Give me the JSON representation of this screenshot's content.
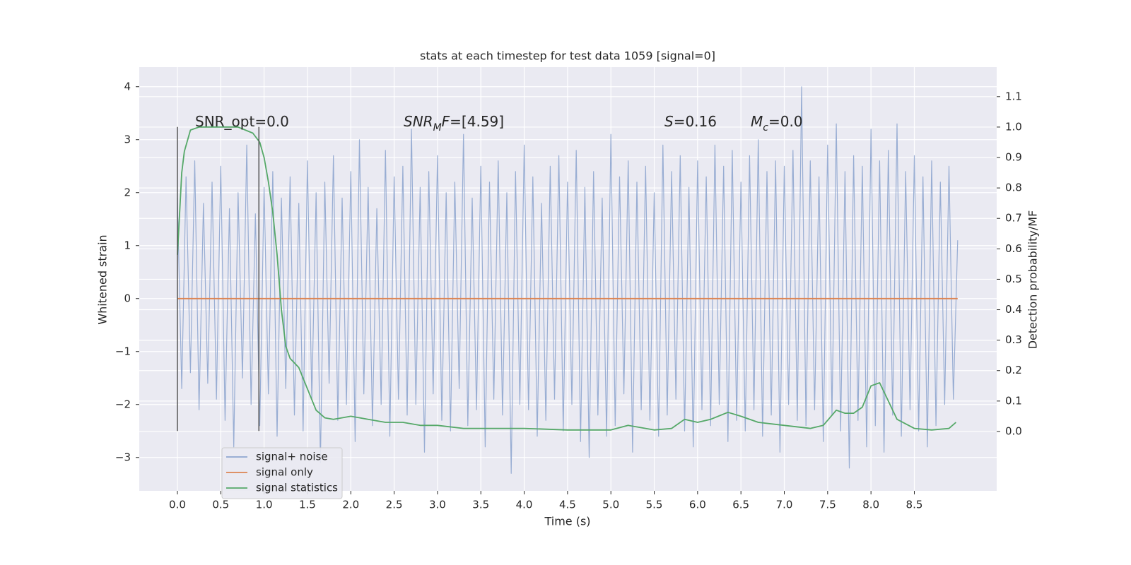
{
  "chart_data": {
    "type": "line",
    "title": "stats at each timestep for test data 1059 [signal=0]",
    "x_label": "Time (s)",
    "y_label": "Whitened strain",
    "y2_label": "Detection probability/MF",
    "xlim": [
      -0.44,
      9.45
    ],
    "ylim": [
      -3.63,
      4.37
    ],
    "y2lim": [
      -0.195,
      1.197
    ],
    "grid": true,
    "legend": "lower left",
    "xticks": [
      {
        "value": 0,
        "label": "0.0"
      },
      {
        "value": 0.5,
        "label": "0.5"
      },
      {
        "value": 1,
        "label": "1.0"
      },
      {
        "value": 1.5,
        "label": "1.5"
      },
      {
        "value": 2,
        "label": "2.0"
      },
      {
        "value": 2.5,
        "label": "2.5"
      },
      {
        "value": 3,
        "label": "3.0"
      },
      {
        "value": 3.5,
        "label": "3.5"
      },
      {
        "value": 4,
        "label": "4.0"
      },
      {
        "value": 4.5,
        "label": "4.5"
      },
      {
        "value": 5,
        "label": "5.0"
      },
      {
        "value": 5.5,
        "label": "5.5"
      },
      {
        "value": 6,
        "label": "6.0"
      },
      {
        "value": 6.5,
        "label": "6.5"
      },
      {
        "value": 7,
        "label": "7.0"
      },
      {
        "value": 7.5,
        "label": "7.5"
      },
      {
        "value": 8,
        "label": "8.0"
      },
      {
        "value": 8.5,
        "label": "8.5"
      }
    ],
    "yticks": [
      {
        "value": -3,
        "label": "−3"
      },
      {
        "value": -2,
        "label": "−2"
      },
      {
        "value": -1,
        "label": "−1"
      },
      0,
      1,
      2,
      3,
      4
    ],
    "y2ticks": [
      {
        "value": 0,
        "label": "0.0"
      },
      {
        "value": 0.1,
        "label": "0.1"
      },
      {
        "value": 0.2,
        "label": "0.2"
      },
      {
        "value": 0.3,
        "label": "0.3"
      },
      {
        "value": 0.4,
        "label": "0.4"
      },
      {
        "value": 0.5,
        "label": "0.5"
      },
      {
        "value": 0.6,
        "label": "0.6"
      },
      {
        "value": 0.7,
        "label": "0.7"
      },
      {
        "value": 0.8,
        "label": "0.8"
      },
      {
        "value": 0.9,
        "label": "0.9"
      },
      {
        "value": 1,
        "label": "1.0"
      },
      {
        "value": 1.1,
        "label": "1.1"
      }
    ],
    "series": [
      {
        "name": "signal+ noise",
        "color": "#8fa6cf",
        "x": [
          0,
          0.05,
          0.1,
          0.15,
          0.2,
          0.25,
          0.3,
          0.35,
          0.4,
          0.45,
          0.5,
          0.55,
          0.6,
          0.65,
          0.7,
          0.75,
          0.8,
          0.85,
          0.9,
          0.95,
          1,
          1.05,
          1.1,
          1.15,
          1.2,
          1.25,
          1.3,
          1.35,
          1.4,
          1.45,
          1.5,
          1.55,
          1.6,
          1.65,
          1.7,
          1.75,
          1.8,
          1.85,
          1.9,
          1.95,
          2,
          2.05,
          2.1,
          2.15,
          2.2,
          2.25,
          2.3,
          2.35,
          2.4,
          2.45,
          2.5,
          2.55,
          2.6,
          2.65,
          2.7,
          2.75,
          2.8,
          2.85,
          2.9,
          2.95,
          3,
          3.05,
          3.1,
          3.15,
          3.2,
          3.25,
          3.3,
          3.35,
          3.4,
          3.45,
          3.5,
          3.55,
          3.6,
          3.65,
          3.7,
          3.75,
          3.8,
          3.85,
          3.9,
          3.95,
          4,
          4.05,
          4.1,
          4.15,
          4.2,
          4.25,
          4.3,
          4.35,
          4.4,
          4.45,
          4.5,
          4.55,
          4.6,
          4.65,
          4.7,
          4.75,
          4.8,
          4.85,
          4.9,
          4.95,
          5,
          5.05,
          5.1,
          5.15,
          5.2,
          5.25,
          5.3,
          5.35,
          5.4,
          5.45,
          5.5,
          5.55,
          5.6,
          5.65,
          5.7,
          5.75,
          5.8,
          5.85,
          5.9,
          5.95,
          6,
          6.05,
          6.1,
          6.15,
          6.2,
          6.25,
          6.3,
          6.35,
          6.4,
          6.45,
          6.5,
          6.55,
          6.6,
          6.65,
          6.7,
          6.75,
          6.8,
          6.85,
          6.9,
          6.95,
          7,
          7.05,
          7.1,
          7.15,
          7.2,
          7.25,
          7.3,
          7.35,
          7.4,
          7.45,
          7.5,
          7.55,
          7.6,
          7.65,
          7.7,
          7.75,
          7.8,
          7.85,
          7.9,
          7.95,
          8,
          8.05,
          8.1,
          8.15,
          8.2,
          8.25,
          8.3,
          8.35,
          8.4,
          8.45,
          8.5,
          8.55,
          8.6,
          8.65,
          8.7,
          8.75,
          8.8,
          8.85,
          8.9,
          8.95,
          9
        ],
        "values": [
          1.9,
          -1.7,
          2.3,
          -1.4,
          2.6,
          -2.1,
          1.8,
          -1.6,
          2.2,
          -1.9,
          2.5,
          -2.3,
          1.7,
          -2.8,
          2.0,
          -1.5,
          2.9,
          -2.0,
          1.6,
          -2.4,
          2.1,
          -1.8,
          2.4,
          -2.6,
          1.9,
          -1.7,
          2.3,
          -2.2,
          1.8,
          -2.5,
          2.6,
          -1.9,
          2.0,
          -3.1,
          2.2,
          -1.6,
          2.7,
          -2.3,
          1.9,
          -2.0,
          2.4,
          -2.7,
          3.0,
          -1.8,
          2.1,
          -2.4,
          1.7,
          -2.0,
          2.8,
          -2.6,
          2.3,
          -1.9,
          2.5,
          -2.2,
          3.2,
          -2.0,
          2.1,
          -2.9,
          2.4,
          -1.8,
          2.7,
          -2.3,
          2.0,
          -2.5,
          2.2,
          -1.7,
          3.1,
          -2.4,
          1.9,
          -2.1,
          2.5,
          -2.8,
          2.2,
          -1.9,
          2.6,
          -2.2,
          2.0,
          -3.3,
          2.4,
          -2.0,
          2.9,
          -2.1,
          2.3,
          -2.6,
          1.8,
          -2.3,
          2.5,
          -1.9,
          2.7,
          -2.5,
          2.2,
          -2.0,
          2.8,
          -2.7,
          2.1,
          -3.0,
          2.4,
          -2.2,
          1.9,
          -2.6,
          3.1,
          -2.4,
          2.3,
          -1.8,
          2.6,
          -2.9,
          2.2,
          -2.1,
          2.5,
          -2.3,
          2.0,
          -2.6,
          2.9,
          -2.2,
          2.4,
          -1.9,
          2.7,
          -2.5,
          2.1,
          -2.8,
          2.6,
          -2.1,
          2.3,
          -2.4,
          2.9,
          -2.0,
          2.5,
          -2.7,
          2.8,
          -2.3,
          2.2,
          -2.5,
          2.7,
          -2.1,
          3.0,
          -2.6,
          2.4,
          -2.2,
          2.6,
          -2.9,
          2.5,
          -2.0,
          2.8,
          -2.3,
          4.0,
          -2.4,
          2.6,
          -2.1,
          2.3,
          -2.7,
          2.9,
          -2.2,
          3.3,
          -2.5,
          2.4,
          -3.2,
          2.7,
          -2.3,
          2.5,
          -2.8,
          3.2,
          -2.4,
          2.6,
          -2.9,
          2.8,
          -2.2,
          3.3,
          -2.6,
          2.4,
          -2.1,
          2.7,
          -2.5,
          2.3,
          -2.8,
          2.6,
          -2.4,
          2.2,
          -2.0,
          2.5,
          -1.9,
          1.1
        ]
      },
      {
        "name": "signal only",
        "color": "#dd8452",
        "x": [
          0,
          9
        ],
        "values": [
          0,
          0
        ]
      },
      {
        "name": "signal statistics",
        "color": "#55a868",
        "axis": "y2",
        "x": [
          0,
          0.05,
          0.08,
          0.15,
          0.25,
          0.5,
          0.7,
          0.87,
          0.95,
          1,
          1.05,
          1.1,
          1.15,
          1.2,
          1.25,
          1.3,
          1.4,
          1.5,
          1.6,
          1.7,
          1.8,
          2,
          2.2,
          2.4,
          2.6,
          2.8,
          3,
          3.3,
          3.5,
          4,
          4.5,
          5,
          5.2,
          5.5,
          5.7,
          5.85,
          6,
          6.15,
          6.35,
          6.5,
          6.7,
          7,
          7.3,
          7.45,
          7.6,
          7.7,
          7.8,
          7.9,
          8,
          8.1,
          8.2,
          8.3,
          8.5,
          8.7,
          8.9,
          8.98
        ],
        "values": [
          0.58,
          0.85,
          0.92,
          0.99,
          1.0,
          1.0,
          1.0,
          0.98,
          0.95,
          0.9,
          0.82,
          0.72,
          0.58,
          0.4,
          0.28,
          0.24,
          0.21,
          0.14,
          0.07,
          0.045,
          0.04,
          0.05,
          0.04,
          0.03,
          0.03,
          0.02,
          0.02,
          0.01,
          0.01,
          0.01,
          0.005,
          0.005,
          0.02,
          0.005,
          0.01,
          0.04,
          0.03,
          0.04,
          0.063,
          0.05,
          0.03,
          0.02,
          0.01,
          0.02,
          0.07,
          0.06,
          0.06,
          0.08,
          0.15,
          0.16,
          0.1,
          0.04,
          0.01,
          0.005,
          0.01,
          0.03
        ]
      }
    ],
    "vlines": {
      "x": [
        0,
        0.94
      ],
      "ymin": -2.5,
      "ymax": 3.24,
      "color": "#555555"
    },
    "annotations": [
      [
        {
          "t": "SNR_opt=0.0"
        }
      ],
      [
        {
          "t": "SNR",
          "style": "italic"
        },
        {
          "t": "M",
          "style": "sub"
        },
        {
          "t": "F",
          "style": "italic"
        },
        {
          "t": "=[4.59]"
        }
      ],
      [
        {
          "t": "S",
          "style": "italic"
        },
        {
          "t": "=0.16"
        }
      ],
      [
        {
          "t": "M",
          "style": "italic"
        },
        {
          "t": "c",
          "style": "sub"
        },
        {
          "t": "=0.0"
        }
      ]
    ]
  }
}
